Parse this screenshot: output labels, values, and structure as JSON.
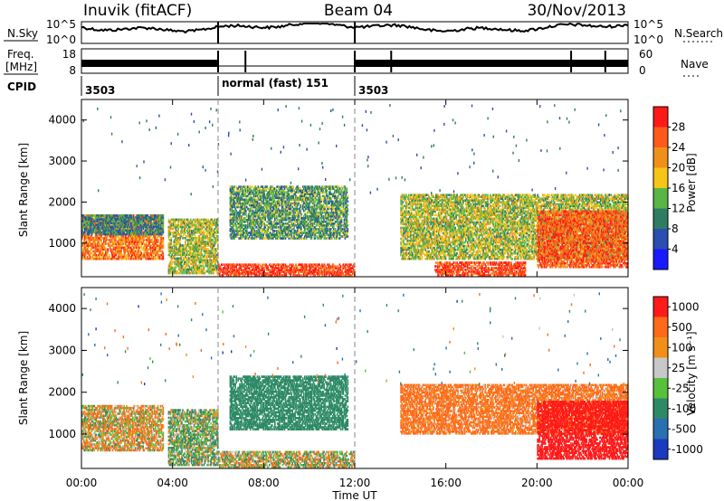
{
  "header": {
    "station": "Inuvik (fitACF)",
    "beam": "Beam 04",
    "date": "30/Nov/2013"
  },
  "aux_panels": {
    "nsky_label": "N.Sky",
    "nsearch_label": "N.Search",
    "freq_label": "Freq.",
    "freq_unit": "[MHz]",
    "nave_label": "Nave",
    "cpid_label": "CPID",
    "nsky_ticks": [
      "10^5",
      "10^0"
    ],
    "nsearch_ticks": [
      "10^5",
      "10^0"
    ],
    "freq_ticks": [
      "18",
      "8"
    ],
    "nave_ticks": [
      "60",
      "0"
    ],
    "cpid_segments": [
      {
        "start_hour": 0,
        "end_hour": 6,
        "label": "3503"
      },
      {
        "start_hour": 6,
        "end_hour": 12,
        "label": "normal (fast) 151"
      },
      {
        "start_hour": 12,
        "end_hour": 24,
        "label": "3503"
      }
    ]
  },
  "axes": {
    "xlabel": "Time UT",
    "ylabel": "Slant Range [km]",
    "x_ticks": [
      "00:00",
      "04:00",
      "08:00",
      "12:00",
      "16:00",
      "20:00",
      "00:00"
    ],
    "y_ticks": [
      "1000",
      "2000",
      "3000",
      "4000"
    ]
  },
  "colorbars": {
    "power": {
      "label": "Power [dB]",
      "ticks": [
        "4",
        "8",
        "12",
        "16",
        "20",
        "24",
        "28"
      ],
      "colors": [
        "#1a1aff",
        "#2a4fb0",
        "#2e7d62",
        "#5ab545",
        "#f5c518",
        "#f0901a",
        "#ff5a1a",
        "#ff1a1a"
      ]
    },
    "velocity": {
      "label": "Velocity [m s⁻¹]",
      "ticks": [
        "1000",
        "500",
        "100",
        "25",
        "-25",
        "-100",
        "-500",
        "-1000"
      ],
      "colors": [
        "#1a3bbf",
        "#2a6fb0",
        "#2e8a66",
        "#58c03a",
        "#c8c8c8",
        "#f0901a",
        "#ff6a1a",
        "#ff1a1a"
      ]
    }
  },
  "chart_data": [
    {
      "type": "heatmap",
      "title": "Power",
      "xlabel": "Time UT",
      "ylabel": "Slant Range [km]",
      "x_range_hours": [
        0,
        24
      ],
      "y_range_km": [
        180,
        4500
      ],
      "colorbar_label": "Power [dB]",
      "colorbar_range": [
        0,
        30
      ],
      "regions": [
        {
          "t0": 0.0,
          "t1": 3.6,
          "r0": 600,
          "r1": 1700,
          "value": 24
        },
        {
          "t0": 0.0,
          "t1": 3.6,
          "r0": 1200,
          "r1": 1700,
          "value": 10
        },
        {
          "t0": 3.8,
          "t1": 6.0,
          "r0": 250,
          "r1": 1600,
          "value": 16
        },
        {
          "t0": 6.0,
          "t1": 12.0,
          "r0": 200,
          "r1": 500,
          "value": 28
        },
        {
          "t0": 6.5,
          "t1": 11.7,
          "r0": 1100,
          "r1": 2400,
          "value": 12
        },
        {
          "t0": 14.0,
          "t1": 24.0,
          "r0": 600,
          "r1": 2200,
          "value": 16
        },
        {
          "t0": 20.0,
          "t1": 24.0,
          "r0": 400,
          "r1": 1800,
          "value": 26
        },
        {
          "t0": 15.5,
          "t1": 19.5,
          "r0": 200,
          "r1": 550,
          "value": 28
        }
      ]
    },
    {
      "type": "heatmap",
      "title": "Velocity",
      "xlabel": "Time UT",
      "ylabel": "Slant Range [km]",
      "x_range_hours": [
        0,
        24
      ],
      "y_range_km": [
        180,
        4500
      ],
      "colorbar_label": "Velocity [m s⁻¹]",
      "colorbar_range": [
        -1000,
        1000
      ],
      "regions": [
        {
          "t0": 0.0,
          "t1": 3.6,
          "r0": 600,
          "r1": 1700,
          "value": -50
        },
        {
          "t0": 3.8,
          "t1": 6.0,
          "r0": 250,
          "r1": 1600,
          "value": 80
        },
        {
          "t0": 6.0,
          "t1": 12.0,
          "r0": 200,
          "r1": 600,
          "value": 10
        },
        {
          "t0": 6.5,
          "t1": 11.7,
          "r0": 1100,
          "r1": 2400,
          "value": 300
        },
        {
          "t0": 14.0,
          "t1": 24.0,
          "r0": 1000,
          "r1": 2200,
          "value": -200
        },
        {
          "t0": 20.0,
          "t1": 24.0,
          "r0": 400,
          "r1": 1800,
          "value": -700
        }
      ]
    }
  ]
}
